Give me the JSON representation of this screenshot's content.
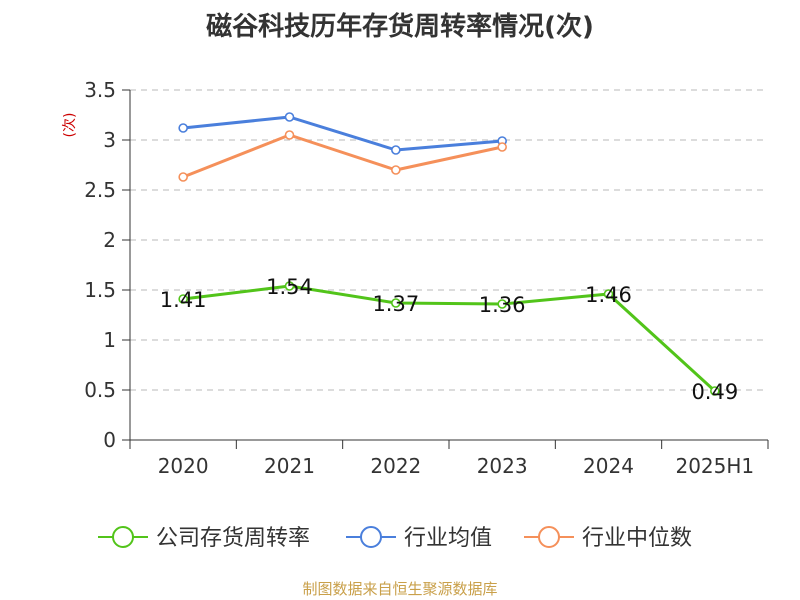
{
  "chart_data": {
    "type": "line",
    "title": "磁谷科技历年存货周转率情况(次)",
    "ylabel": "(次)",
    "categories": [
      "2020",
      "2021",
      "2022",
      "2023",
      "2024",
      "2025H1"
    ],
    "ylim": [
      0,
      3.5
    ],
    "yticks": [
      "0",
      "0.5",
      "1",
      "1.5",
      "2",
      "2.5",
      "3",
      "3.5"
    ],
    "grid": true,
    "legend_position": "bottom",
    "series": [
      {
        "name": "公司存货周转率",
        "color": "#52c41a",
        "values": [
          1.41,
          1.54,
          1.37,
          1.36,
          1.46,
          0.49
        ],
        "labels": [
          "1.41",
          "1.54",
          "1.37",
          "1.36",
          "1.46",
          "0.49"
        ]
      },
      {
        "name": "行业均值",
        "color": "#4a7fdc",
        "values": [
          3.12,
          3.23,
          2.9,
          2.99,
          null,
          null
        ]
      },
      {
        "name": "行业中位数",
        "color": "#f5905a",
        "values": [
          2.63,
          3.05,
          2.7,
          2.93,
          null,
          null
        ]
      }
    ]
  },
  "source": "制图数据来自恒生聚源数据库"
}
